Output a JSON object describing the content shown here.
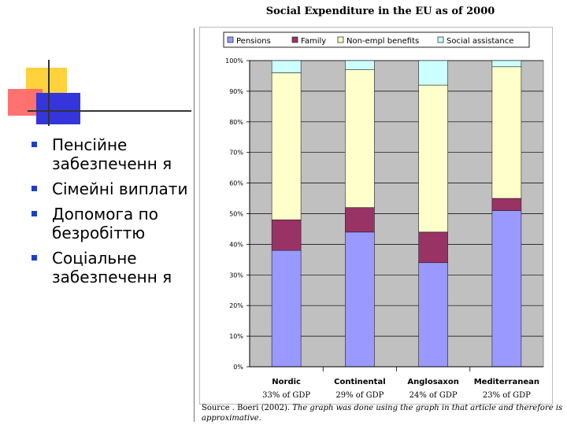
{
  "bullets": [
    "Пенсійне забезпеченн я",
    "Сімейні виплати",
    "Допомога по безробіттю",
    "Соціальне забезпеченн я"
  ],
  "chart_data": {
    "type": "bar",
    "stacked": true,
    "title": "Social Expenditure in the EU as of 2000",
    "categories": [
      "Nordic",
      "Continental",
      "Anglosaxon",
      "Mediterranean"
    ],
    "sublabels": [
      "33% of GDP",
      "29% of GDP",
      "24% of GDP",
      "23% of GDP"
    ],
    "series": [
      {
        "name": "Pensions",
        "values": [
          38,
          44,
          34,
          51
        ],
        "color": "#9999ff"
      },
      {
        "name": "Family",
        "values": [
          10,
          8,
          10,
          4
        ],
        "color": "#993366"
      },
      {
        "name": "Non-empl benefits",
        "values": [
          48,
          45,
          48,
          43
        ],
        "color": "#ffffcc"
      },
      {
        "name": "Social assistance",
        "values": [
          4,
          3,
          8,
          2
        ],
        "color": "#ccffff"
      }
    ],
    "ylim": [
      0,
      100
    ],
    "yticks": [
      "0%",
      "10%",
      "20%",
      "30%",
      "40%",
      "50%",
      "60%",
      "70%",
      "80%",
      "90%",
      "100%"
    ],
    "plot_background": "#c0c0c0",
    "legend_position": "top",
    "source_prefix": "Source . Boeri (2002). ",
    "source_note": "The graph was done using the graph in that article and therefore is approximative."
  }
}
